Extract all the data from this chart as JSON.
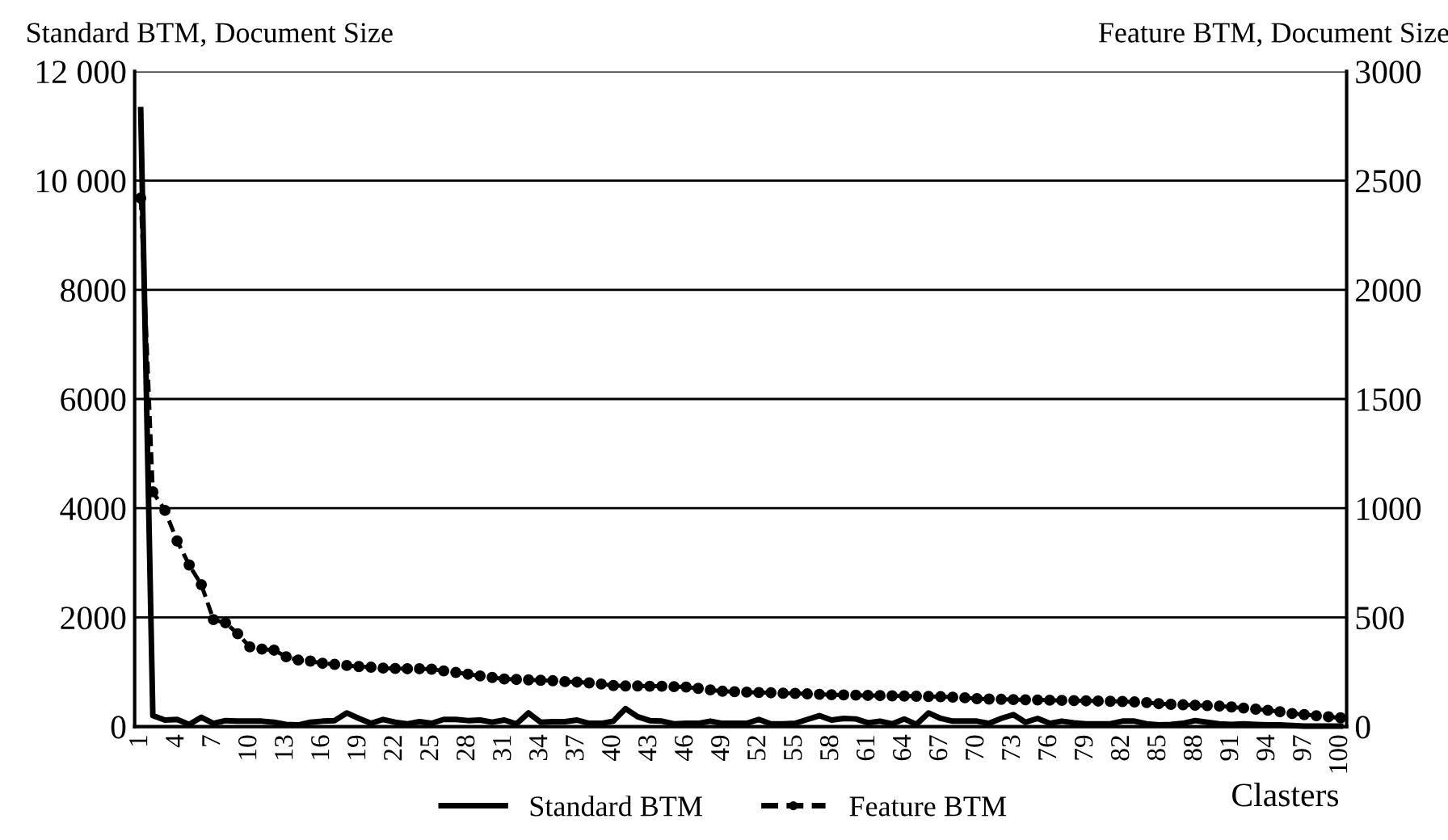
{
  "chart_data": {
    "type": "line",
    "ylabel": "Standard BTM, Document Size",
    "y2label": "Feature BTM, Document Size",
    "xlabel": "Clasters",
    "categories": [
      "1",
      null,
      null,
      "4",
      null,
      null,
      "7",
      null,
      null,
      "10",
      null,
      null,
      "13",
      null,
      null,
      "16",
      null,
      null,
      "19",
      null,
      null,
      "22",
      null,
      null,
      "25",
      null,
      null,
      "28",
      null,
      null,
      "31",
      null,
      null,
      "34",
      null,
      null,
      "37",
      null,
      null,
      "40",
      null,
      null,
      "43",
      null,
      null,
      "46",
      null,
      null,
      "49",
      null,
      null,
      "52",
      null,
      null,
      "55",
      null,
      null,
      "58",
      null,
      null,
      "61",
      null,
      null,
      "64",
      null,
      null,
      "67",
      null,
      null,
      "70",
      null,
      null,
      "73",
      null,
      null,
      "76",
      null,
      null,
      "79",
      null,
      null,
      "82",
      null,
      null,
      "85",
      null,
      null,
      "88",
      null,
      null,
      "91",
      null,
      null,
      "94",
      null,
      null,
      "97",
      null,
      null,
      "100"
    ],
    "series": [
      {
        "name": "Standard BTM",
        "color": "#000000",
        "line_style": "solid",
        "marker": "none",
        "values": [
          11300,
          200,
          120,
          130,
          40,
          170,
          60,
          110,
          100,
          100,
          100,
          80,
          40,
          30,
          80,
          100,
          110,
          250,
          150,
          60,
          130,
          80,
          50,
          90,
          60,
          130,
          130,
          110,
          120,
          80,
          120,
          50,
          250,
          80,
          90,
          90,
          120,
          60,
          60,
          100,
          330,
          180,
          110,
          100,
          50,
          60,
          60,
          100,
          60,
          60,
          60,
          130,
          50,
          50,
          60,
          130,
          200,
          120,
          150,
          140,
          70,
          100,
          50,
          140,
          40,
          250,
          150,
          100,
          100,
          100,
          60,
          150,
          220,
          80,
          150,
          60,
          100,
          70,
          50,
          50,
          50,
          100,
          100,
          50,
          30,
          40,
          60,
          110,
          80,
          50,
          40,
          50,
          40,
          30,
          30,
          20,
          10,
          10,
          10,
          10
        ]
      },
      {
        "name": "Feature BTM",
        "color": "#000000",
        "line_style": "dashed",
        "marker": "circle",
        "axis": "y2",
        "values": [
          2420,
          1075,
          990,
          850,
          740,
          650,
          490,
          475,
          425,
          365,
          355,
          350,
          320,
          305,
          300,
          290,
          285,
          280,
          275,
          272,
          268,
          266,
          265,
          265,
          263,
          255,
          248,
          240,
          232,
          225,
          218,
          216,
          214,
          212,
          210,
          206,
          204,
          200,
          195,
          188,
          186,
          186,
          185,
          185,
          183,
          181,
          175,
          168,
          162,
          160,
          158,
          156,
          155,
          153,
          152,
          150,
          148,
          146,
          145,
          144,
          143,
          142,
          141,
          140,
          139,
          138,
          137,
          135,
          132,
          128,
          126,
          125,
          124,
          123,
          122,
          121,
          120,
          119,
          118,
          117,
          116,
          115,
          113,
          110,
          105,
          102,
          100,
          98,
          96,
          94,
          90,
          85,
          80,
          75,
          68,
          60,
          55,
          50,
          45,
          40
        ]
      }
    ],
    "ylim": [
      0,
      12000
    ],
    "yticks": [
      0,
      2000,
      4000,
      6000,
      8000,
      {
        "value": 10000,
        "label": "10 000"
      },
      {
        "value": 12000,
        "label": "12 000"
      }
    ],
    "y2lim": [
      0,
      3000
    ],
    "y2ticks": [
      0,
      500,
      1000,
      1500,
      2000,
      2500,
      3000
    ],
    "grid": "y",
    "legend": "bottom"
  }
}
